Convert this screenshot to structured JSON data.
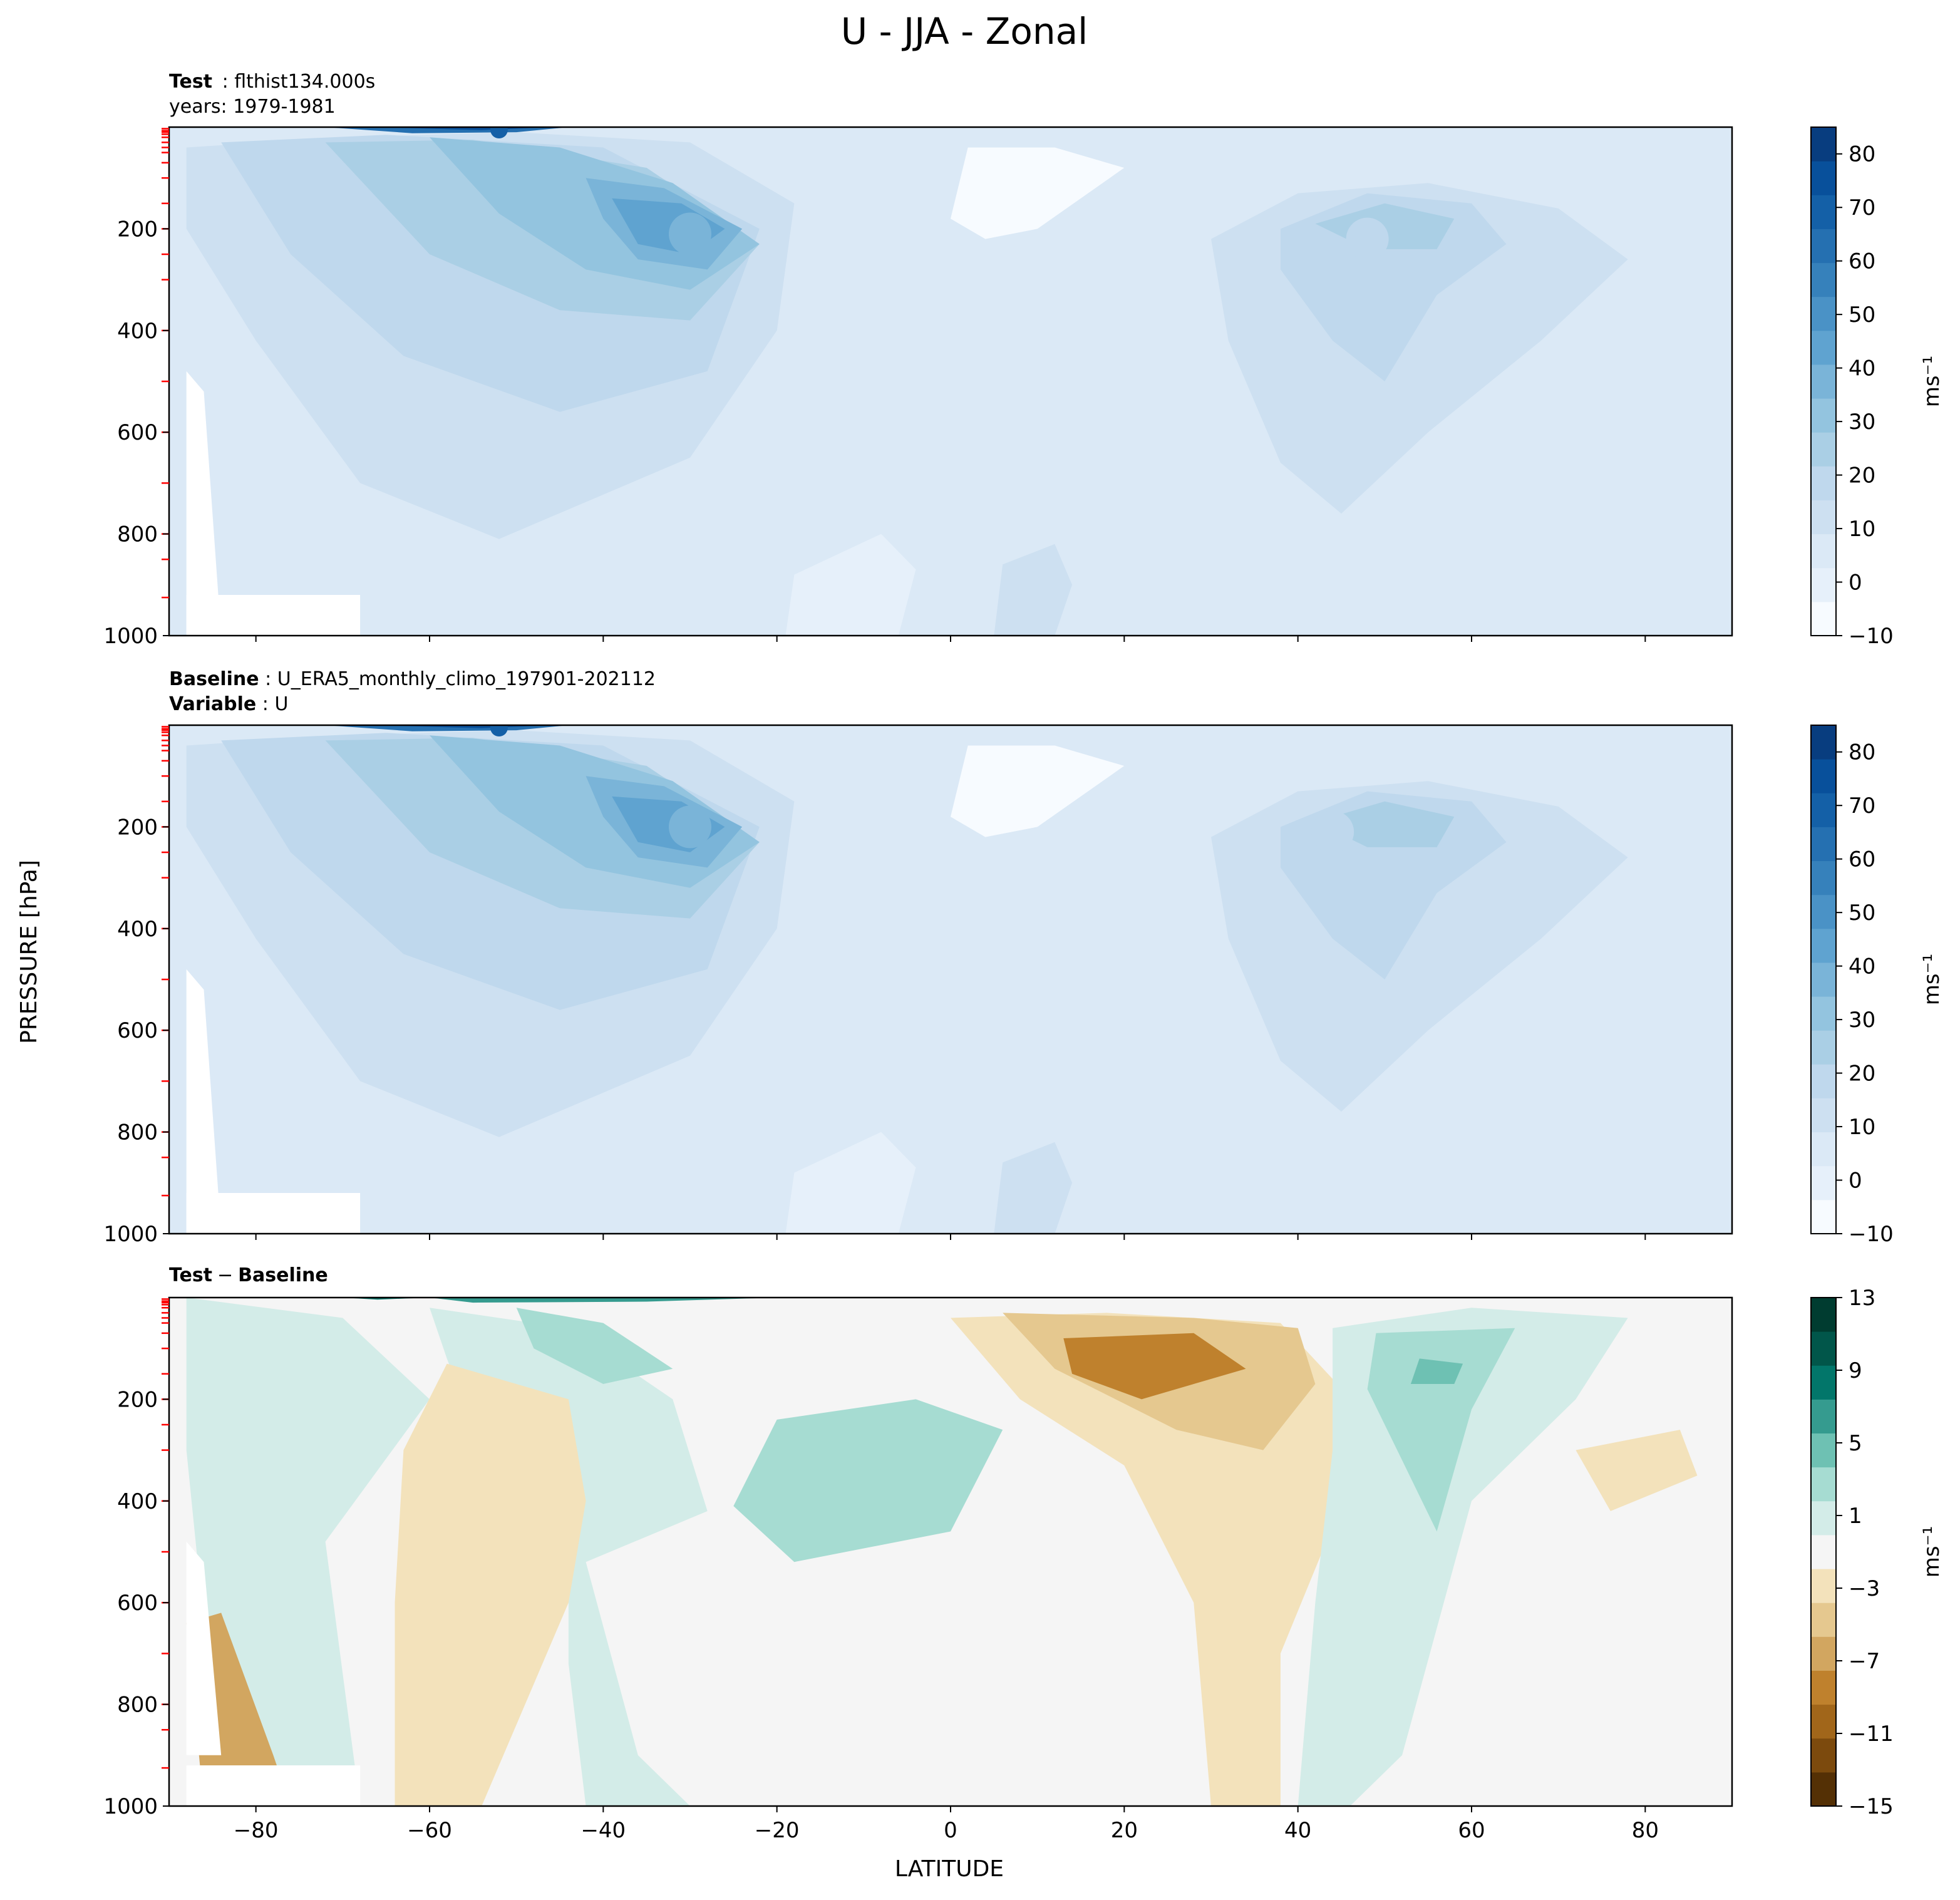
{
  "chart_data": {
    "title": "U - JJA - Zonal",
    "ylabel": "PRESSURE [hPa]",
    "xlabel": "LATITUDE",
    "x_ticks": [
      -80,
      -60,
      -40,
      -20,
      0,
      20,
      40,
      60,
      80
    ],
    "x_tick_labels": [
      "−80",
      "−60",
      "−40",
      "−20",
      "0",
      "20",
      "40",
      "60",
      "80"
    ],
    "xlim": [
      -90,
      90
    ],
    "y_ticks": [
      200,
      400,
      600,
      800,
      1000
    ],
    "y_tick_labels": [
      "200",
      "400",
      "600",
      "800",
      "1000"
    ],
    "ylim": [
      1000,
      0
    ],
    "colors": {
      "mean_cmap": [
        "#f7fbff",
        "#e6f0fa",
        "#dbe9f6",
        "#cde0f1",
        "#bfd8ed",
        "#aacfe5",
        "#93c4df",
        "#7ab4d8",
        "#5fa3d0",
        "#4a92c6",
        "#3681bb",
        "#2570b1",
        "#1460a7",
        "#08509b",
        "#083d7f"
      ],
      "diff_cmap": [
        "#543005",
        "#7c4a0d",
        "#a1661a",
        "#bf812d",
        "#d2a660",
        "#e5c88f",
        "#f3e2bb",
        "#f5f5f5",
        "#d3ece8",
        "#a6dcd2",
        "#6ec1b3",
        "#359b8f",
        "#02766a",
        "#01564a",
        "#003c30"
      ],
      "pressure_marker": "#ff0000"
    },
    "panels": [
      {
        "type": "filled-contour",
        "header_bold_1": "Test",
        "header_text_1": "flthist134.000s",
        "header_line_2": "years: 1979-1981",
        "colorbar_ticks": [
          "−10",
          "0",
          "10",
          "20",
          "30",
          "40",
          "50",
          "60",
          "70",
          "80"
        ],
        "colorbar_tick_values": [
          -10,
          0,
          10,
          20,
          30,
          40,
          50,
          60,
          70,
          80
        ],
        "colorbar_range": [
          -10,
          85
        ],
        "colorbar_label": "ms⁻¹",
        "jets": [
          {
            "lat": -30,
            "p": 210,
            "u": 50
          },
          {
            "lat": 48,
            "p": 220,
            "u": 28
          },
          {
            "lat": -52,
            "p": 5,
            "u": 85
          }
        ]
      },
      {
        "type": "filled-contour",
        "header_bold_1": "Baseline",
        "header_text_1": "U_ERA5_monthly_climo_197901-202112",
        "header_bold_2": "Variable",
        "header_text_2": "U",
        "colorbar_ticks": [
          "−10",
          "0",
          "10",
          "20",
          "30",
          "40",
          "50",
          "60",
          "70",
          "80"
        ],
        "colorbar_tick_values": [
          -10,
          0,
          10,
          20,
          30,
          40,
          50,
          60,
          70,
          80
        ],
        "colorbar_range": [
          -10,
          85
        ],
        "colorbar_label": "ms⁻¹",
        "jets": [
          {
            "lat": -30,
            "p": 200,
            "u": 52
          },
          {
            "lat": 44,
            "p": 210,
            "u": 30
          },
          {
            "lat": -52,
            "p": 5,
            "u": 82
          }
        ]
      },
      {
        "type": "filled-contour",
        "header_bold_1": "Test",
        "header_text_1": "−",
        "header_bold_1b": "Baseline",
        "colorbar_ticks": [
          "−15",
          "−11",
          "−7",
          "−3",
          "1",
          "5",
          "9",
          "13"
        ],
        "colorbar_tick_values": [
          -15,
          -11,
          -7,
          -3,
          1,
          5,
          9,
          13
        ],
        "colorbar_range": [
          -15,
          13
        ],
        "colorbar_label": "ms⁻¹"
      }
    ]
  }
}
